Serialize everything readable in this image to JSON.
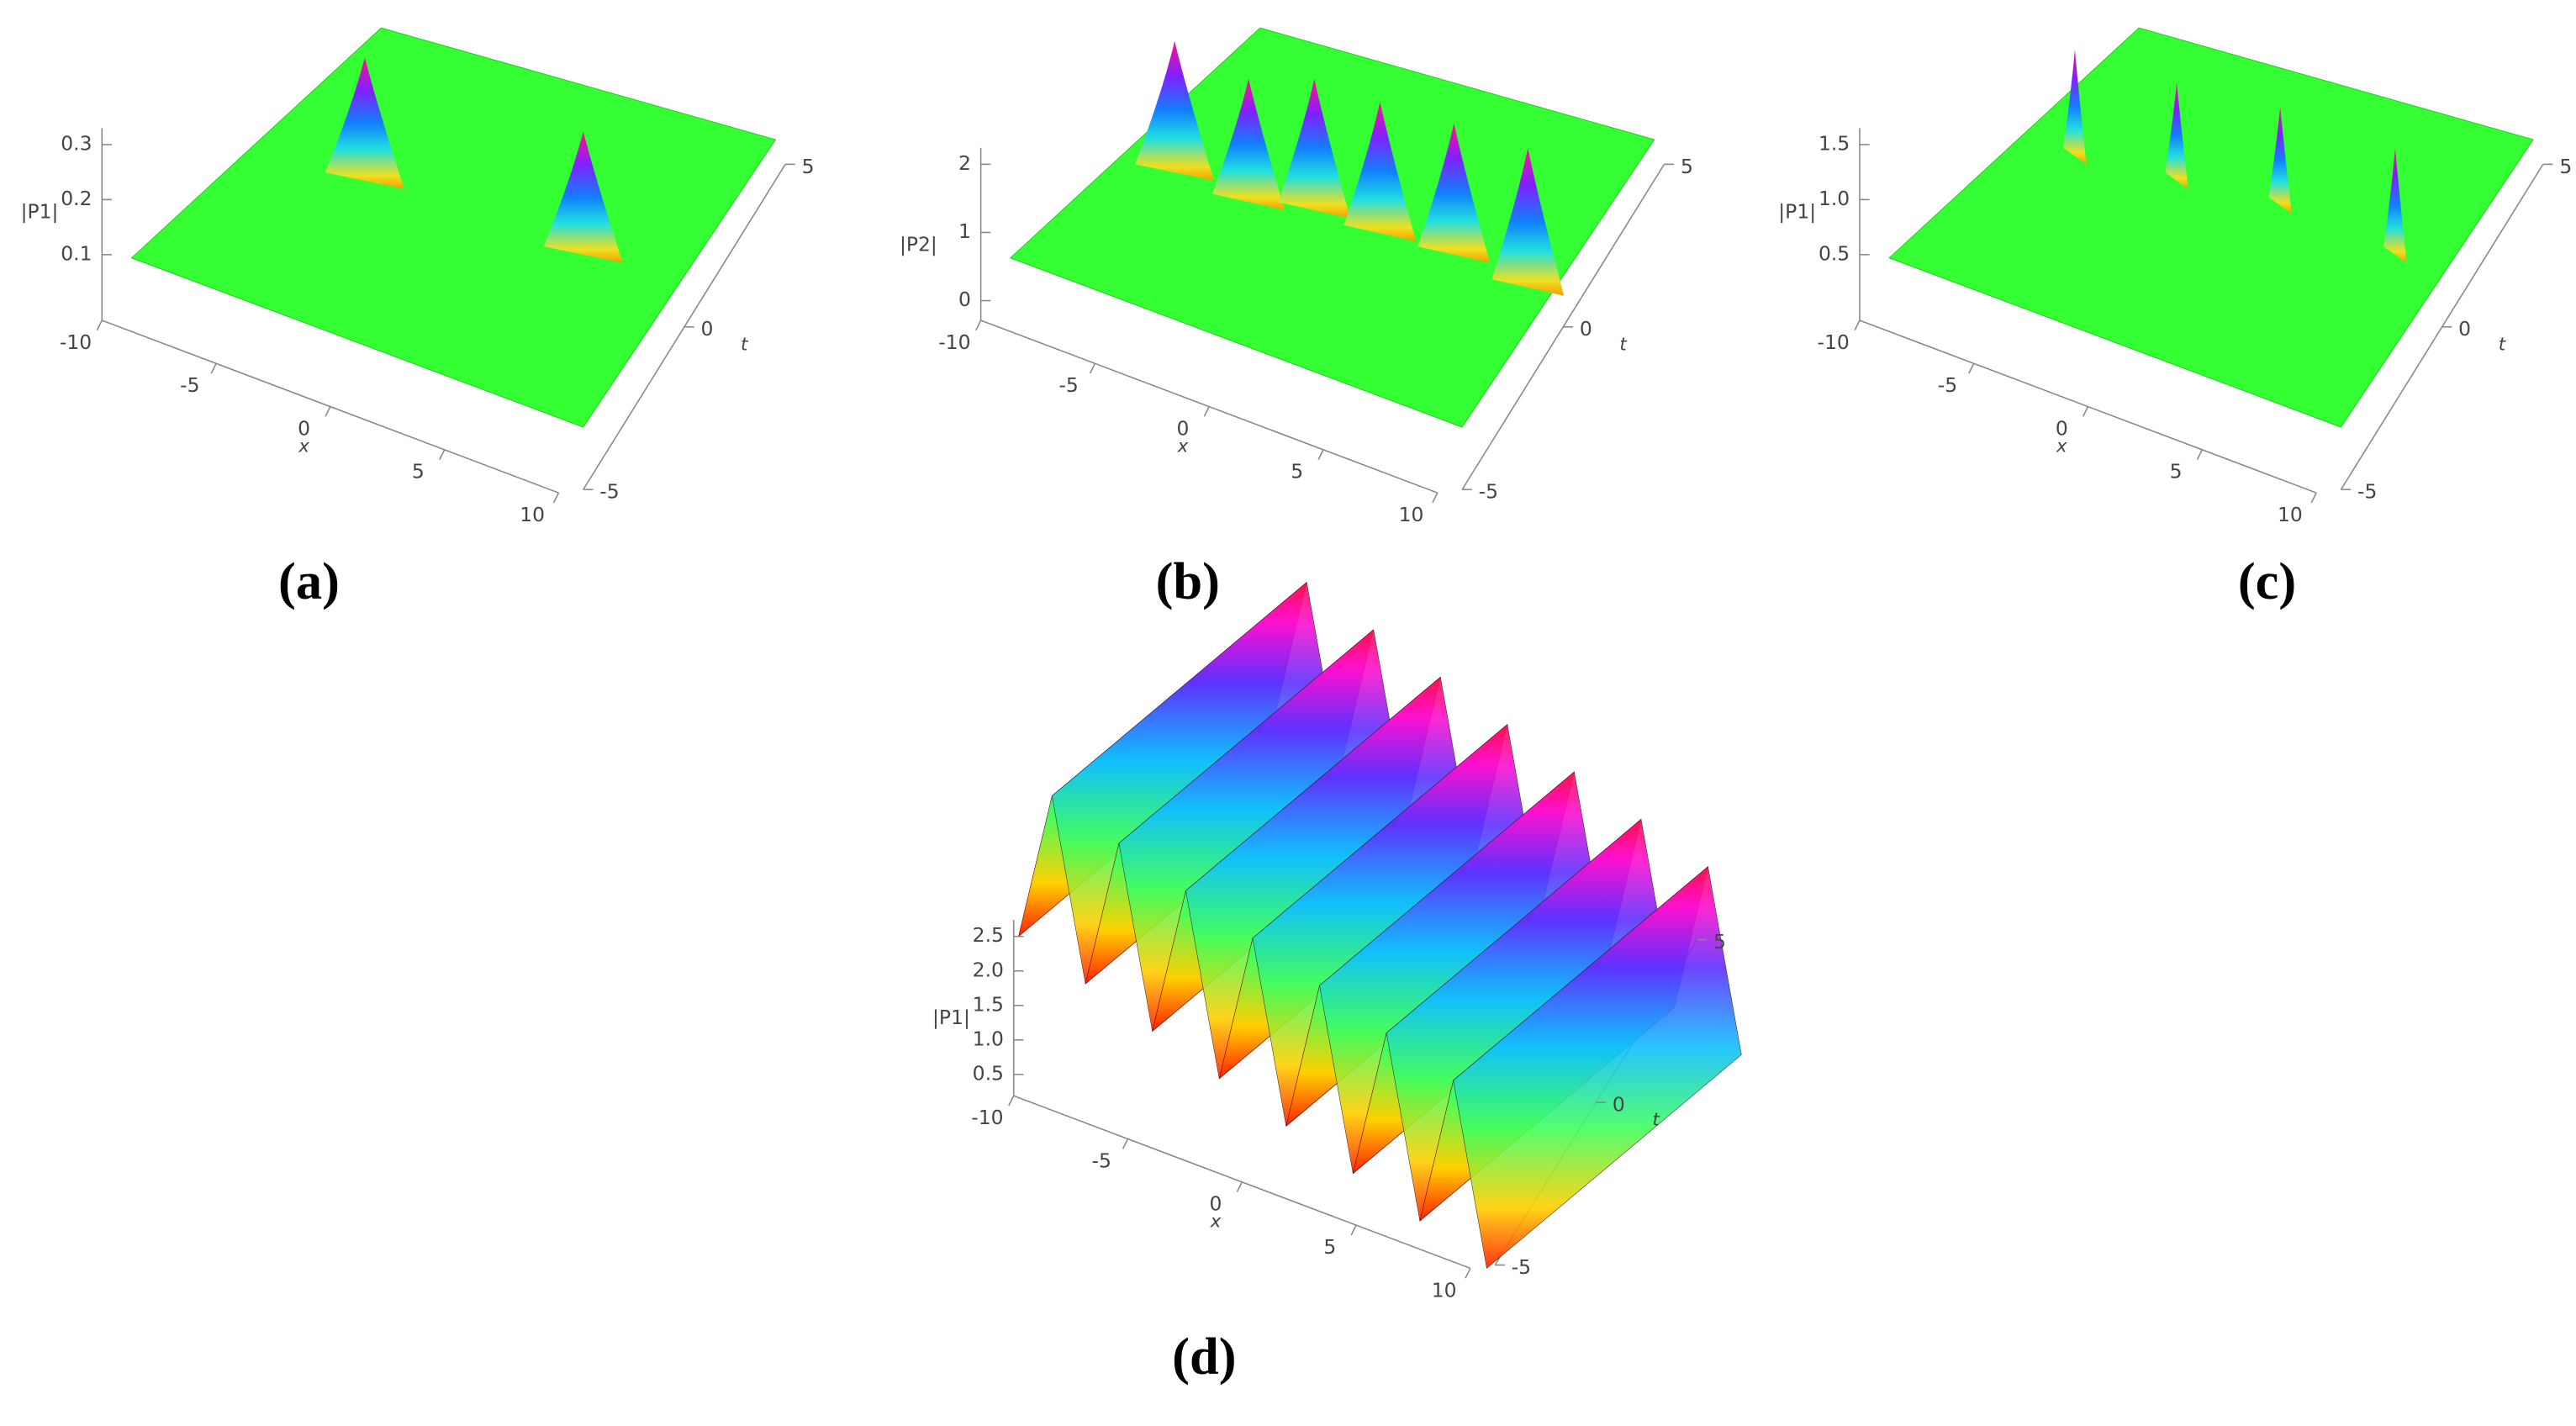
{
  "panels": [
    {
      "caption": "(a)",
      "z_label": "|P1|",
      "x_label": "x",
      "t_label": "t",
      "z_ticks": [
        "0.1",
        "0.2",
        "0.3"
      ],
      "x_ticks": [
        "-10",
        "-5",
        "0",
        "5",
        "10"
      ],
      "t_ticks": [
        "-5",
        "0",
        "5"
      ]
    },
    {
      "caption": "(b)",
      "z_label": "|P2|",
      "x_label": "x",
      "t_label": "t",
      "z_ticks": [
        "0",
        "1",
        "2"
      ],
      "x_ticks": [
        "-10",
        "-5",
        "0",
        "5",
        "10"
      ],
      "t_ticks": [
        "-5",
        "0",
        "5"
      ]
    },
    {
      "caption": "(c)",
      "z_label": "|P1|",
      "x_label": "x",
      "t_label": "t",
      "z_ticks": [
        "0.5",
        "1.0",
        "1.5"
      ],
      "x_ticks": [
        "-10",
        "-5",
        "0",
        "5",
        "10"
      ],
      "t_ticks": [
        "-5",
        "0",
        "5"
      ]
    },
    {
      "caption": "(d)",
      "z_label": "|P1|",
      "x_label": "x",
      "t_label": "t",
      "z_ticks": [
        "0.5",
        "1.0",
        "1.5",
        "2.0",
        "2.5"
      ],
      "x_ticks": [
        "-10",
        "-5",
        "0",
        "5",
        "10"
      ],
      "t_ticks": [
        "-5",
        "0",
        "5"
      ]
    }
  ]
}
